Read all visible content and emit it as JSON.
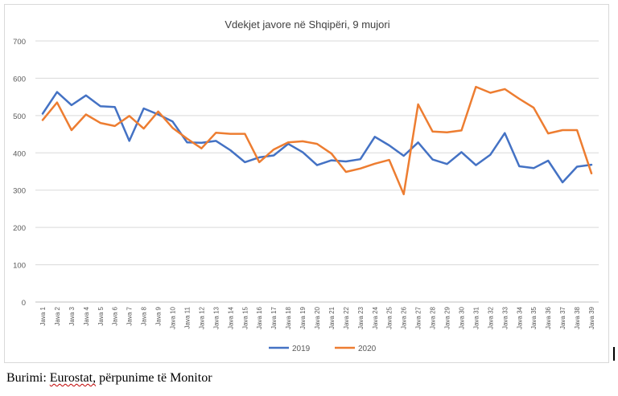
{
  "chart_data": {
    "type": "line",
    "title": "Vdekjet javore në Shqipëri, 9 mujori",
    "xlabel": "",
    "ylabel": "",
    "ylim": [
      0,
      700
    ],
    "yticks": [
      0,
      100,
      200,
      300,
      400,
      500,
      600,
      700
    ],
    "grid": true,
    "legend_position": "bottom",
    "categories": [
      "Java 1",
      "Java 2",
      "Java 3",
      "Java 4",
      "Java 5",
      "Java 6",
      "Java 7",
      "Java 8",
      "Java 9",
      "Java 10",
      "Java 11",
      "Java 12",
      "Java 13",
      "Java 14",
      "Java 15",
      "Java 16",
      "Java 17",
      "Java 18",
      "Java 19",
      "Java 20",
      "Java 21",
      "Java 22",
      "Java 23",
      "Java 24",
      "Java 25",
      "Java 26",
      "Java 27",
      "Java 28",
      "Java 29",
      "Java 30",
      "Java 31",
      "Java 32",
      "Java 33",
      "Java 34",
      "Java 35",
      "Java 36",
      "Java 37",
      "Java 38",
      "Java 39"
    ],
    "series": [
      {
        "name": "2019",
        "color": "#4472c4",
        "values": [
          505,
          563,
          528,
          554,
          525,
          523,
          432,
          519,
          503,
          484,
          428,
          427,
          432,
          407,
          375,
          388,
          393,
          424,
          402,
          367,
          380,
          377,
          383,
          443,
          420,
          392,
          428,
          382,
          370,
          402,
          367,
          395,
          453,
          364,
          359,
          379,
          321,
          363,
          368
        ]
      },
      {
        "name": "2020",
        "color": "#ed7d31",
        "values": [
          488,
          535,
          461,
          503,
          480,
          472,
          499,
          465,
          511,
          467,
          438,
          412,
          454,
          451,
          451,
          375,
          409,
          428,
          431,
          424,
          398,
          349,
          358,
          371,
          381,
          289,
          530,
          457,
          455,
          460,
          577,
          561,
          571,
          545,
          521,
          452,
          461,
          461,
          345
        ]
      }
    ]
  },
  "footer": {
    "source_word": "Burimi:",
    "source_name": "Eurostat,",
    "source_rest": "përpunime të Monitor"
  }
}
